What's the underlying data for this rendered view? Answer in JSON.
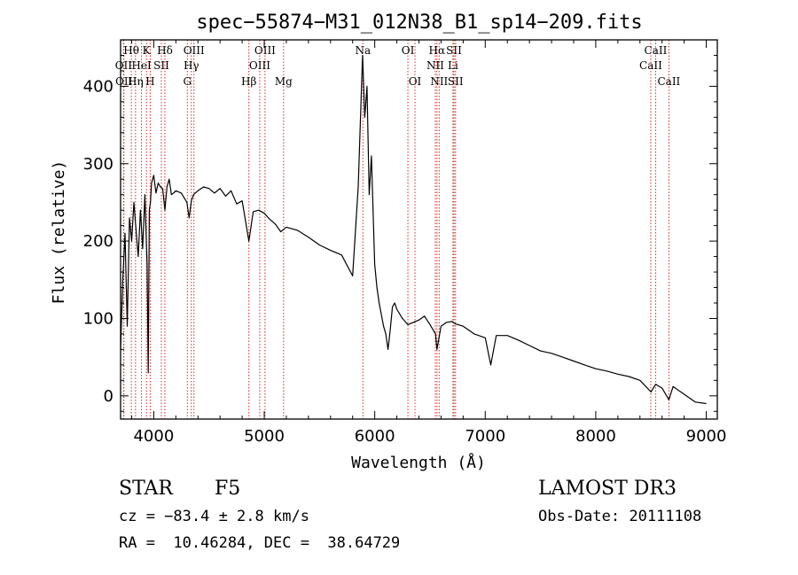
{
  "chart_data": {
    "type": "line",
    "title": "spec−55874−M31_012N38_B1_sp14−209.fits",
    "xlabel": "Wavelength (Å)",
    "ylabel": "Flux (relative)",
    "xlim": [
      3700,
      9100
    ],
    "ylim": [
      -30,
      460
    ],
    "xticks": [
      4000,
      5000,
      6000,
      7000,
      8000,
      9000
    ],
    "yticks": [
      0,
      100,
      200,
      300,
      400
    ],
    "xminor_step": 200,
    "yminor_step": 20,
    "series": [
      {
        "name": "flux",
        "x": [
          3700,
          3720,
          3740,
          3760,
          3780,
          3800,
          3820,
          3840,
          3860,
          3880,
          3900,
          3920,
          3940,
          3950,
          3960,
          3970,
          3980,
          4000,
          4020,
          4040,
          4060,
          4080,
          4101,
          4120,
          4140,
          4160,
          4180,
          4200,
          4250,
          4300,
          4320,
          4340,
          4360,
          4400,
          4450,
          4500,
          4550,
          4600,
          4650,
          4700,
          4750,
          4800,
          4861,
          4900,
          4950,
          5000,
          5050,
          5100,
          5150,
          5200,
          5300,
          5400,
          5500,
          5600,
          5700,
          5800,
          5850,
          5890,
          5910,
          5930,
          5950,
          5970,
          6000,
          6020,
          6040,
          6060,
          6080,
          6100,
          6120,
          6140,
          6160,
          6180,
          6200,
          6250,
          6300,
          6350,
          6400,
          6450,
          6500,
          6550,
          6563,
          6600,
          6650,
          6700,
          6730,
          6800,
          6900,
          7000,
          7050,
          7100,
          7200,
          7300,
          7400,
          7500,
          7600,
          7700,
          7800,
          7900,
          8000,
          8100,
          8200,
          8300,
          8400,
          8500,
          8542,
          8600,
          8662,
          8700,
          8800,
          8900,
          9000
        ],
        "y": [
          60,
          150,
          210,
          90,
          230,
          200,
          250,
          215,
          180,
          240,
          190,
          260,
          170,
          30,
          240,
          250,
          275,
          285,
          262,
          275,
          270,
          268,
          240,
          270,
          280,
          260,
          262,
          265,
          262,
          250,
          230,
          252,
          260,
          265,
          270,
          268,
          262,
          268,
          258,
          265,
          248,
          252,
          200,
          238,
          240,
          236,
          228,
          222,
          212,
          218,
          214,
          205,
          195,
          188,
          182,
          155,
          270,
          440,
          360,
          400,
          260,
          310,
          170,
          140,
          120,
          105,
          90,
          80,
          60,
          85,
          115,
          120,
          112,
          100,
          92,
          95,
          98,
          103,
          92,
          80,
          60,
          90,
          95,
          96,
          93,
          90,
          80,
          75,
          40,
          78,
          78,
          72,
          65,
          58,
          55,
          50,
          45,
          40,
          35,
          32,
          28,
          25,
          20,
          5,
          15,
          10,
          -5,
          12,
          2,
          -8,
          -10
        ]
      }
    ],
    "line_labels": [
      {
        "label": "Hθ",
        "x": 3797
      },
      {
        "label": "K",
        "x": 3934
      },
      {
        "label": "Hδ",
        "x": 4101
      },
      {
        "label": "OIII",
        "x": 4364
      },
      {
        "label": "OIII",
        "x": 5007
      },
      {
        "label": "Na",
        "x": 5893
      },
      {
        "label": "OI",
        "x": 6300
      },
      {
        "label": "Hα",
        "x": 6563
      },
      {
        "label": "SII",
        "x": 6717
      },
      {
        "label": "CaII",
        "x": 8542
      },
      {
        "label": "OII",
        "x": 3727
      },
      {
        "label": "HeI",
        "x": 3889
      },
      {
        "label": "SII",
        "x": 4069
      },
      {
        "label": "Hγ",
        "x": 4340
      },
      {
        "label": "OIII",
        "x": 4959
      },
      {
        "label": "NII",
        "x": 6548
      },
      {
        "label": "Li",
        "x": 6708
      },
      {
        "label": "CaII",
        "x": 8498
      },
      {
        "label": "OII",
        "x": 3730
      },
      {
        "label": "Hη",
        "x": 3835
      },
      {
        "label": "H",
        "x": 3968
      },
      {
        "label": "G",
        "x": 4304
      },
      {
        "label": "Hβ",
        "x": 4861
      },
      {
        "label": "Mg",
        "x": 5175
      },
      {
        "label": "OI",
        "x": 6364
      },
      {
        "label": "NII",
        "x": 6583
      },
      {
        "label": "SII",
        "x": 6731
      },
      {
        "label": "CaII",
        "x": 8662
      }
    ]
  },
  "info": {
    "classification": "STAR",
    "subclass": "F5",
    "survey": "LAMOST DR3",
    "velocity": "cz = −83.4 ± 2.8 km/s",
    "obs_date": "Obs-Date: 20111108",
    "coordinates": "RA =  10.46284, DEC =  38.64729"
  },
  "colors": {
    "line_markers": "#d62828",
    "spectrum": "#000000",
    "axes": "#000000"
  }
}
